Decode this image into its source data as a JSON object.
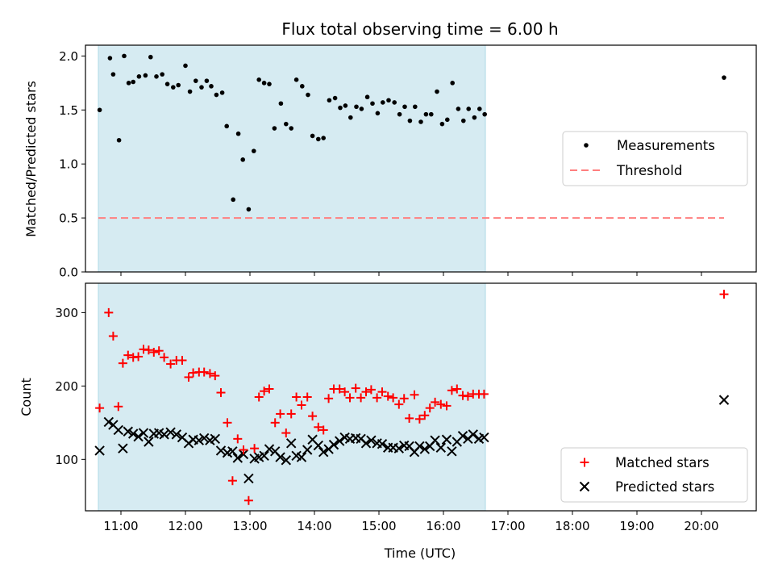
{
  "figure": {
    "title": "Flux total observing time = 6.00 h",
    "xlabel": "Time (UTC)",
    "colors": {
      "shade": "#add8e6",
      "measurement": "#000000",
      "threshold": "#ff7f7f",
      "matched": "#ff0000",
      "predicted": "#000000"
    }
  },
  "chart_data": [
    {
      "type": "scatter",
      "ylabel": "Matched/Predicted stars",
      "xlim": [
        10.45,
        20.85
      ],
      "ylim": [
        0,
        2.1
      ],
      "yticks": [
        0.0,
        0.5,
        1.0,
        1.5,
        2.0
      ],
      "ytick_labels": [
        "0.0",
        "0.5",
        "1.0",
        "1.5",
        "2.0"
      ],
      "shaded_span": [
        10.65,
        16.65
      ],
      "legend_position": "center-right",
      "legend": [
        "Measurements",
        "Threshold"
      ],
      "threshold": {
        "name": "Threshold",
        "y": 0.5,
        "x_range": [
          10.65,
          20.35
        ],
        "style": "dashed"
      },
      "series": [
        {
          "name": "Measurements",
          "marker": "dot",
          "points": [
            [
              10.67,
              1.5
            ],
            [
              10.83,
              1.98
            ],
            [
              10.88,
              1.83
            ],
            [
              10.97,
              1.22
            ],
            [
              11.05,
              2.0
            ],
            [
              11.12,
              1.75
            ],
            [
              11.19,
              1.76
            ],
            [
              11.28,
              1.81
            ],
            [
              11.38,
              1.82
            ],
            [
              11.46,
              1.99
            ],
            [
              11.55,
              1.81
            ],
            [
              11.64,
              1.83
            ],
            [
              11.72,
              1.74
            ],
            [
              11.81,
              1.71
            ],
            [
              11.89,
              1.73
            ],
            [
              12.0,
              1.91
            ],
            [
              12.07,
              1.67
            ],
            [
              12.16,
              1.77
            ],
            [
              12.25,
              1.71
            ],
            [
              12.33,
              1.77
            ],
            [
              12.4,
              1.72
            ],
            [
              12.48,
              1.64
            ],
            [
              12.57,
              1.66
            ],
            [
              12.64,
              1.35
            ],
            [
              12.74,
              0.67
            ],
            [
              12.82,
              1.28
            ],
            [
              12.89,
              1.04
            ],
            [
              12.98,
              0.58
            ],
            [
              13.06,
              1.12
            ],
            [
              13.14,
              1.78
            ],
            [
              13.22,
              1.75
            ],
            [
              13.3,
              1.74
            ],
            [
              13.38,
              1.33
            ],
            [
              13.48,
              1.56
            ],
            [
              13.56,
              1.37
            ],
            [
              13.64,
              1.33
            ],
            [
              13.72,
              1.78
            ],
            [
              13.81,
              1.72
            ],
            [
              13.9,
              1.64
            ],
            [
              13.97,
              1.26
            ],
            [
              14.06,
              1.23
            ],
            [
              14.14,
              1.24
            ],
            [
              14.23,
              1.59
            ],
            [
              14.32,
              1.61
            ],
            [
              14.4,
              1.52
            ],
            [
              14.48,
              1.54
            ],
            [
              14.56,
              1.43
            ],
            [
              14.65,
              1.53
            ],
            [
              14.73,
              1.51
            ],
            [
              14.82,
              1.62
            ],
            [
              14.9,
              1.56
            ],
            [
              14.98,
              1.47
            ],
            [
              15.06,
              1.57
            ],
            [
              15.15,
              1.59
            ],
            [
              15.24,
              1.57
            ],
            [
              15.32,
              1.46
            ],
            [
              15.4,
              1.53
            ],
            [
              15.48,
              1.4
            ],
            [
              15.56,
              1.53
            ],
            [
              15.65,
              1.39
            ],
            [
              15.73,
              1.46
            ],
            [
              15.81,
              1.46
            ],
            [
              15.9,
              1.67
            ],
            [
              15.98,
              1.37
            ],
            [
              16.06,
              1.41
            ],
            [
              16.14,
              1.75
            ],
            [
              16.23,
              1.51
            ],
            [
              16.31,
              1.4
            ],
            [
              16.39,
              1.51
            ],
            [
              16.48,
              1.43
            ],
            [
              16.56,
              1.51
            ],
            [
              16.64,
              1.46
            ],
            [
              20.35,
              1.8
            ]
          ]
        }
      ]
    },
    {
      "type": "scatter",
      "ylabel": "Count",
      "xlim": [
        10.45,
        20.85
      ],
      "ylim": [
        30,
        340
      ],
      "yticks": [
        100,
        200,
        300
      ],
      "ytick_labels": [
        "100",
        "200",
        "300"
      ],
      "xticks": [
        11,
        12,
        13,
        14,
        15,
        16,
        17,
        18,
        19,
        20
      ],
      "xtick_labels": [
        "11:00",
        "12:00",
        "13:00",
        "14:00",
        "15:00",
        "16:00",
        "17:00",
        "18:00",
        "19:00",
        "20:00"
      ],
      "shaded_span": [
        10.65,
        16.65
      ],
      "legend_position": "lower-right",
      "legend": [
        "Matched stars",
        "Predicted stars"
      ],
      "series": [
        {
          "name": "Matched stars",
          "marker": "plus",
          "points": [
            [
              10.67,
              170
            ],
            [
              10.81,
              300
            ],
            [
              10.88,
              268
            ],
            [
              10.96,
              172
            ],
            [
              11.03,
              231
            ],
            [
              11.11,
              242
            ],
            [
              11.19,
              239
            ],
            [
              11.27,
              240
            ],
            [
              11.35,
              250
            ],
            [
              11.43,
              249
            ],
            [
              11.51,
              246
            ],
            [
              11.59,
              248
            ],
            [
              11.67,
              239
            ],
            [
              11.77,
              230
            ],
            [
              11.86,
              235
            ],
            [
              11.95,
              235
            ],
            [
              12.05,
              212
            ],
            [
              12.12,
              218
            ],
            [
              12.21,
              219
            ],
            [
              12.29,
              219
            ],
            [
              12.38,
              217
            ],
            [
              12.46,
              214
            ],
            [
              12.55,
              191
            ],
            [
              12.65,
              150
            ],
            [
              12.73,
              71
            ],
            [
              12.81,
              128
            ],
            [
              12.9,
              113
            ],
            [
              12.98,
              44
            ],
            [
              13.07,
              115
            ],
            [
              13.14,
              185
            ],
            [
              13.22,
              193
            ],
            [
              13.3,
              196
            ],
            [
              13.39,
              150
            ],
            [
              13.47,
              162
            ],
            [
              13.56,
              136
            ],
            [
              13.64,
              162
            ],
            [
              13.72,
              185
            ],
            [
              13.8,
              174
            ],
            [
              13.89,
              185
            ],
            [
              13.97,
              159
            ],
            [
              14.06,
              144
            ],
            [
              14.14,
              140
            ],
            [
              14.22,
              183
            ],
            [
              14.3,
              196
            ],
            [
              14.39,
              196
            ],
            [
              14.47,
              192
            ],
            [
              14.55,
              184
            ],
            [
              14.64,
              197
            ],
            [
              14.72,
              184
            ],
            [
              14.8,
              192
            ],
            [
              14.88,
              195
            ],
            [
              14.97,
              184
            ],
            [
              15.05,
              192
            ],
            [
              15.14,
              186
            ],
            [
              15.22,
              184
            ],
            [
              15.31,
              175
            ],
            [
              15.39,
              183
            ],
            [
              15.47,
              156
            ],
            [
              15.55,
              188
            ],
            [
              15.63,
              155
            ],
            [
              15.71,
              160
            ],
            [
              15.79,
              170
            ],
            [
              15.87,
              178
            ],
            [
              15.96,
              175
            ],
            [
              16.05,
              173
            ],
            [
              16.13,
              194
            ],
            [
              16.21,
              196
            ],
            [
              16.3,
              187
            ],
            [
              16.38,
              186
            ],
            [
              16.46,
              189
            ],
            [
              16.55,
              189
            ],
            [
              16.63,
              189
            ],
            [
              20.35,
              325
            ]
          ]
        },
        {
          "name": "Predicted stars",
          "marker": "x",
          "points": [
            [
              10.67,
              112
            ],
            [
              10.81,
              151
            ],
            [
              10.88,
              147
            ],
            [
              10.96,
              140
            ],
            [
              11.03,
              115
            ],
            [
              11.11,
              138
            ],
            [
              11.19,
              135
            ],
            [
              11.27,
              131
            ],
            [
              11.35,
              136
            ],
            [
              11.43,
              124
            ],
            [
              11.51,
              135
            ],
            [
              11.59,
              136
            ],
            [
              11.67,
              134
            ],
            [
              11.77,
              137
            ],
            [
              11.86,
              134
            ],
            [
              11.95,
              130
            ],
            [
              12.05,
              122
            ],
            [
              12.12,
              127
            ],
            [
              12.21,
              126
            ],
            [
              12.29,
              129
            ],
            [
              12.38,
              126
            ],
            [
              12.46,
              128
            ],
            [
              12.55,
              112
            ],
            [
              12.65,
              109
            ],
            [
              12.73,
              111
            ],
            [
              12.81,
              102
            ],
            [
              12.9,
              107
            ],
            [
              12.98,
              74
            ],
            [
              13.07,
              101
            ],
            [
              13.14,
              103
            ],
            [
              13.22,
              105
            ],
            [
              13.3,
              114
            ],
            [
              13.39,
              111
            ],
            [
              13.47,
              103
            ],
            [
              13.56,
              99
            ],
            [
              13.64,
              122
            ],
            [
              13.72,
              105
            ],
            [
              13.8,
              103
            ],
            [
              13.89,
              113
            ],
            [
              13.97,
              127
            ],
            [
              14.06,
              119
            ],
            [
              14.14,
              110
            ],
            [
              14.22,
              114
            ],
            [
              14.3,
              120
            ],
            [
              14.39,
              125
            ],
            [
              14.47,
              130
            ],
            [
              14.55,
              128
            ],
            [
              14.64,
              129
            ],
            [
              14.72,
              128
            ],
            [
              14.8,
              122
            ],
            [
              14.88,
              126
            ],
            [
              14.97,
              122
            ],
            [
              15.05,
              121
            ],
            [
              15.14,
              116
            ],
            [
              15.22,
              116
            ],
            [
              15.31,
              115
            ],
            [
              15.39,
              119
            ],
            [
              15.47,
              118
            ],
            [
              15.55,
              110
            ],
            [
              15.63,
              118
            ],
            [
              15.71,
              114
            ],
            [
              15.79,
              118
            ],
            [
              15.87,
              126
            ],
            [
              15.96,
              116
            ],
            [
              16.05,
              127
            ],
            [
              16.13,
              111
            ],
            [
              16.21,
              124
            ],
            [
              16.3,
              132
            ],
            [
              16.38,
              128
            ],
            [
              16.46,
              134
            ],
            [
              16.55,
              128
            ],
            [
              16.63,
              130
            ],
            [
              20.35,
              181
            ]
          ]
        }
      ]
    }
  ]
}
